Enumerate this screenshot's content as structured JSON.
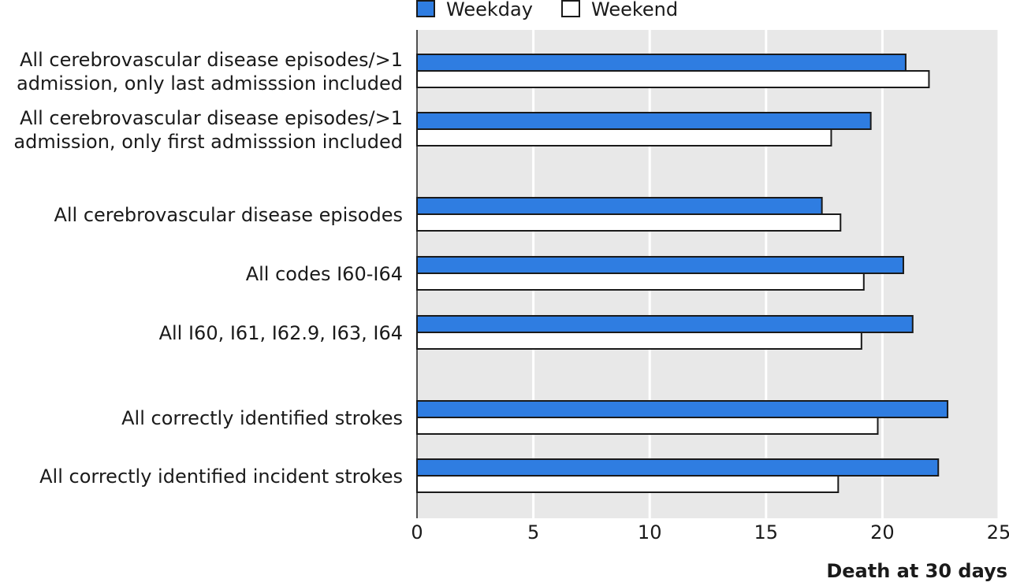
{
  "chart_data": {
    "type": "bar",
    "orientation": "horizontal",
    "categories": [
      [
        "All cerebrovascular disease episodes/>1",
        "admission, only last admisssion included"
      ],
      [
        "All cerebrovascular disease episodes/>1",
        "admission, only first admisssion included"
      ],
      [
        "All cerebrovascular disease episodes"
      ],
      [
        "All codes I60-I64"
      ],
      [
        "All I60, I61, I62.9, I63, I64"
      ],
      [
        "All correctly identified strokes"
      ],
      [
        "All correctly identified incident strokes"
      ]
    ],
    "series": [
      {
        "name": "Weekday",
        "color": "#2f7de1",
        "values": [
          21.0,
          19.5,
          17.4,
          20.9,
          21.3,
          22.8,
          22.4
        ]
      },
      {
        "name": "Weekend",
        "color": "#ffffff",
        "values": [
          22.0,
          17.8,
          18.2,
          19.2,
          19.1,
          19.8,
          18.1
        ]
      }
    ],
    "xlabel": "Death at 30 days",
    "xlim": [
      0,
      25
    ],
    "xticks": [
      0,
      5,
      10,
      15,
      20,
      25
    ],
    "grid": true,
    "legend_position": "top",
    "colors": {
      "plot_background": "#e8e8e8",
      "gridline": "#ffffff",
      "bar_outline": "#1a1a1a"
    }
  }
}
